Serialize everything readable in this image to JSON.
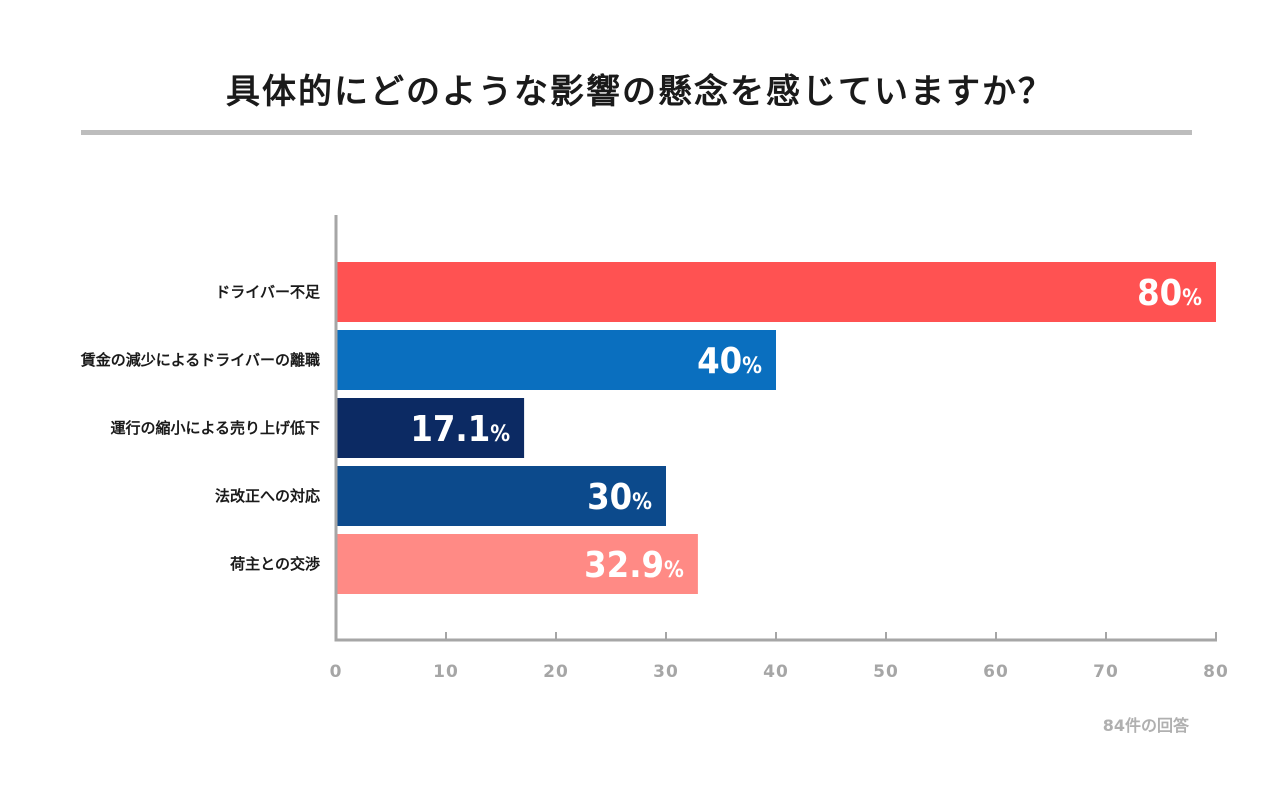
{
  "chart_data": {
    "type": "bar",
    "orientation": "horizontal",
    "title": "具体的にどのような影響の懸念を感じていますか？",
    "categories": [
      "ドライバー不足",
      "賃金の減少によるドライバーの離職",
      "運行の縮小による売り上げ低下",
      "法改正への対応",
      "荷主との交渉"
    ],
    "values": [
      80,
      40,
      17.1,
      30,
      32.9
    ],
    "value_labels": [
      "80",
      "40",
      "17.1",
      "30",
      "32.9"
    ],
    "value_suffix": "%",
    "bar_colors": [
      "#ff5252",
      "#0a6fbf",
      "#0c2a63",
      "#0c4a8c",
      "#ff8a85"
    ],
    "xlim": [
      0,
      80
    ],
    "xticks": [
      0,
      10,
      20,
      30,
      40,
      50,
      60,
      70,
      80
    ],
    "xlabel": "",
    "ylabel": "",
    "grid": false
  },
  "footnote": "84件の回答",
  "colors": {
    "axis": "#a6a6a6",
    "title_rule": "#bdbdbd"
  }
}
